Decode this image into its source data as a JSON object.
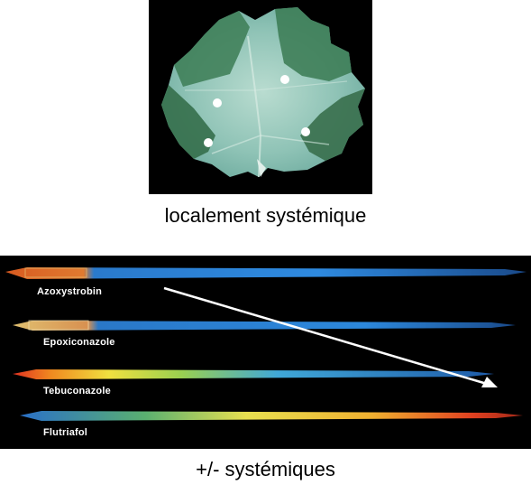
{
  "top_image": {
    "caption": "localement systémique",
    "spot_icon": "white-dot-icon"
  },
  "bottom_image": {
    "caption": "+/- systémiques",
    "strips": [
      {
        "label": "Azoxystrobin"
      },
      {
        "label": "Epoxiconazole"
      },
      {
        "label": "Tebuconazole"
      },
      {
        "label": "Flutriafol"
      }
    ],
    "arrow_icon": "arrow-right-icon"
  }
}
